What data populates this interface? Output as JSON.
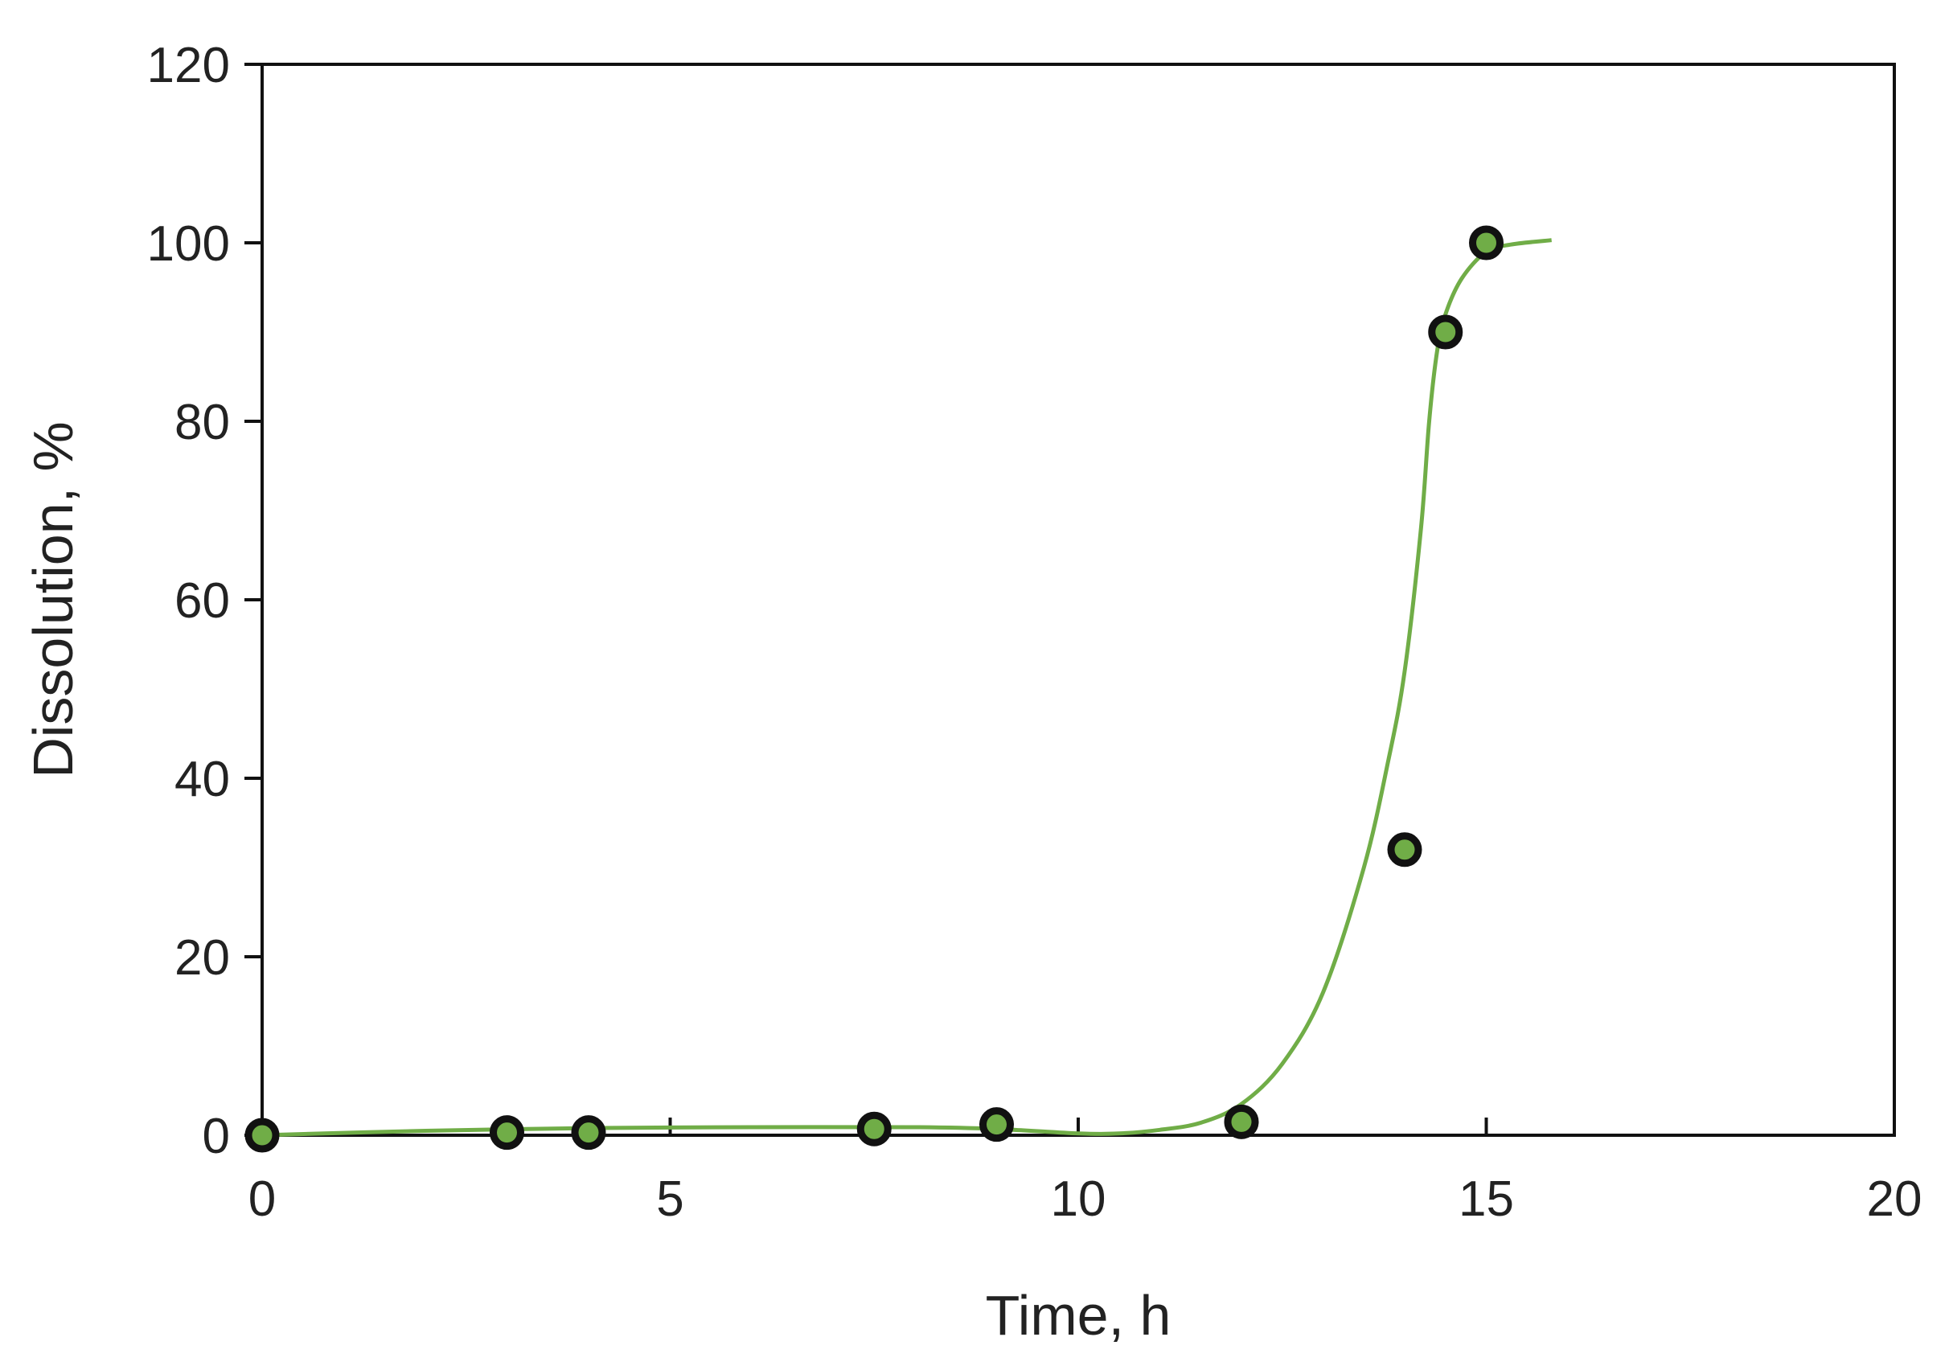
{
  "chart_data": {
    "type": "scatter",
    "title": "",
    "xlabel": "Time, h",
    "ylabel": "Dissolution, %",
    "xlim": [
      0,
      20
    ],
    "ylim": [
      0,
      120
    ],
    "xticks": [
      0,
      5,
      10,
      15,
      20
    ],
    "yticks": [
      0,
      20,
      40,
      60,
      80,
      100,
      120
    ],
    "grid": false,
    "legend": "none",
    "series": [
      {
        "kind": "scatter",
        "x": [
          0,
          3,
          4,
          7.5,
          9,
          12,
          14,
          14.5,
          15
        ],
        "y": [
          0,
          0.3,
          0.3,
          0.7,
          1.2,
          1.5,
          32,
          90,
          100
        ],
        "color": "#70ad47",
        "edge_color": "#111111"
      },
      {
        "kind": "line",
        "x": [
          0,
          2,
          4,
          6,
          8,
          9,
          10,
          10.5,
          11,
          11.5,
          12,
          12.5,
          13,
          13.5,
          13.8,
          14,
          14.2,
          14.3,
          14.4,
          14.5,
          14.7,
          15,
          15.3,
          15.8
        ],
        "y": [
          0,
          0.5,
          0.8,
          0.9,
          0.9,
          0.7,
          0.2,
          0.2,
          0.6,
          1.4,
          3.5,
          8,
          16,
          30,
          42,
          52,
          68,
          80,
          88,
          92,
          96,
          99,
          99.8,
          100.3
        ],
        "color": "#70ad47"
      }
    ]
  }
}
